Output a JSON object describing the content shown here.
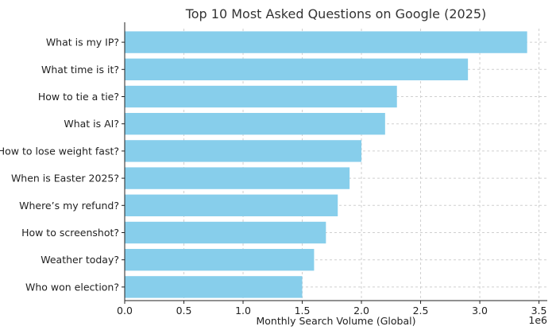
{
  "chart_data": {
    "type": "bar",
    "orientation": "horizontal",
    "title": "Top 10 Most Asked Questions on Google (2025)",
    "xlabel": "Monthly Search Volume (Global)",
    "ylabel": "",
    "x_scale_note": "1e6",
    "categories": [
      "What is my IP?",
      "What time is it?",
      "How to tie a tie?",
      "What is AI?",
      "How to lose weight fast?",
      "When is Easter 2025?",
      "Where’s my refund?",
      "How to screenshot?",
      "Weather today?",
      "Who won election?"
    ],
    "values": [
      3400000,
      2900000,
      2300000,
      2200000,
      2000000,
      1900000,
      1800000,
      1700000,
      1600000,
      1500000
    ],
    "x_ticks": [
      0.0,
      0.5,
      1.0,
      1.5,
      2.0,
      2.5,
      3.0,
      3.5
    ],
    "x_tick_labels": [
      "0.0",
      "0.5",
      "1.0",
      "1.5",
      "2.0",
      "2.5",
      "3.0",
      "3.5"
    ],
    "xlim": [
      0,
      3570000
    ],
    "grid": true,
    "bar_color": "#87ceeb",
    "legend": "none"
  }
}
